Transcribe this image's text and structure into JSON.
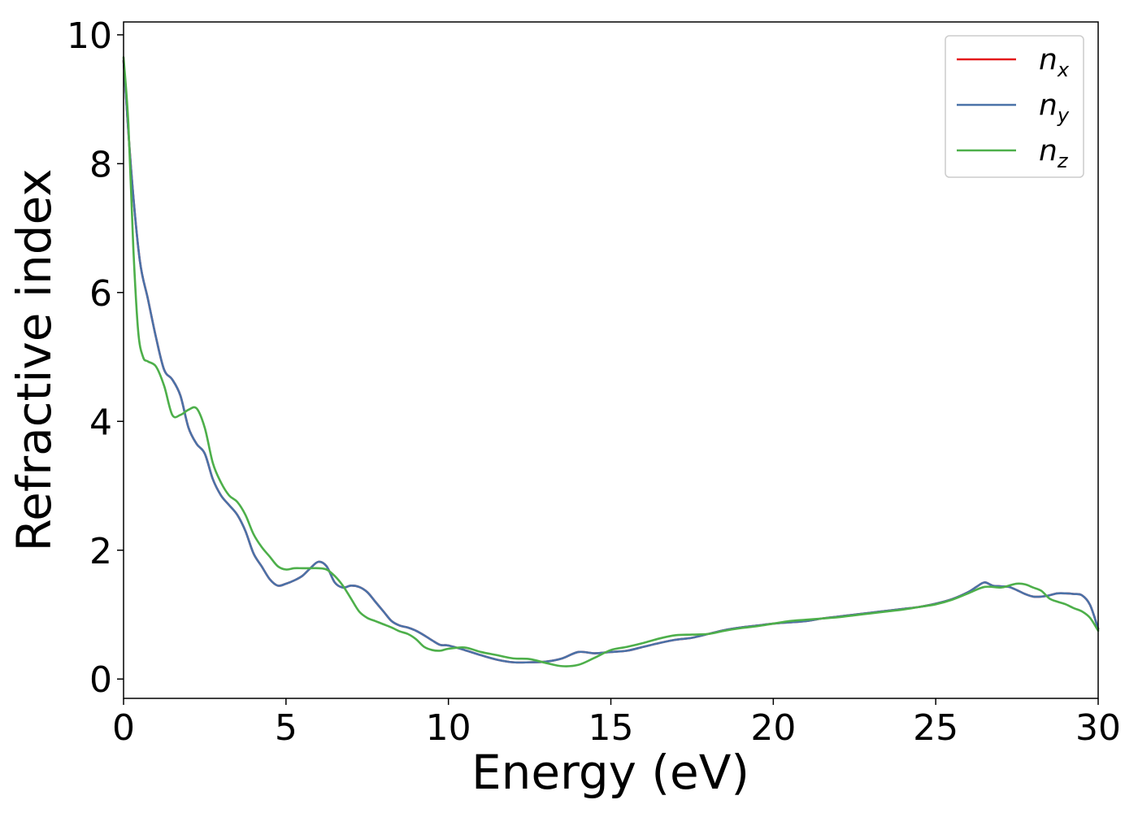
{
  "chart_data": {
    "type": "line",
    "title": "",
    "xlabel": "Energy (eV)",
    "ylabel": "Refractive index",
    "xlim": [
      0,
      30
    ],
    "ylim": [
      -0.3,
      10.2
    ],
    "xticks": [
      0,
      5,
      10,
      15,
      20,
      25,
      30
    ],
    "yticks": [
      0,
      2,
      4,
      6,
      8,
      10
    ],
    "grid": false,
    "legend_position": "top-right",
    "series": [
      {
        "name": "n",
        "subscript": "x",
        "color": "#e41a1c",
        "x": [
          0,
          0.25,
          0.5,
          0.75,
          1,
          1.25,
          1.5,
          1.75,
          2,
          2.25,
          2.5,
          2.75,
          3,
          3.25,
          3.5,
          3.75,
          4,
          4.25,
          4.5,
          4.75,
          5,
          5.25,
          5.5,
          5.75,
          6,
          6.25,
          6.5,
          6.75,
          7,
          7.25,
          7.5,
          7.75,
          8,
          8.25,
          8.5,
          8.75,
          9,
          9.25,
          9.5,
          9.75,
          10,
          10.5,
          11,
          11.5,
          12,
          12.5,
          13,
          13.5,
          14,
          14.5,
          15,
          15.5,
          16,
          16.5,
          17,
          17.5,
          18,
          18.5,
          19,
          19.5,
          20,
          20.5,
          21,
          21.5,
          22,
          22.5,
          23,
          23.5,
          24,
          24.5,
          25,
          25.5,
          26,
          26.25,
          26.5,
          26.75,
          27,
          27.25,
          27.5,
          27.75,
          28,
          28.25,
          28.5,
          28.75,
          29,
          29.25,
          29.5,
          29.75,
          30
        ],
        "values": [
          9.6,
          7.8,
          6.5,
          5.9,
          5.3,
          4.8,
          4.65,
          4.4,
          3.9,
          3.65,
          3.5,
          3.1,
          2.85,
          2.7,
          2.55,
          2.3,
          1.95,
          1.75,
          1.55,
          1.45,
          1.48,
          1.53,
          1.6,
          1.72,
          1.82,
          1.75,
          1.5,
          1.42,
          1.45,
          1.43,
          1.35,
          1.2,
          1.05,
          0.9,
          0.83,
          0.8,
          0.75,
          0.68,
          0.6,
          0.53,
          0.52,
          0.45,
          0.37,
          0.3,
          0.26,
          0.26,
          0.27,
          0.32,
          0.42,
          0.4,
          0.42,
          0.44,
          0.5,
          0.56,
          0.61,
          0.64,
          0.7,
          0.76,
          0.8,
          0.83,
          0.86,
          0.88,
          0.9,
          0.94,
          0.97,
          1.0,
          1.03,
          1.06,
          1.09,
          1.12,
          1.17,
          1.24,
          1.35,
          1.43,
          1.5,
          1.45,
          1.44,
          1.43,
          1.38,
          1.32,
          1.28,
          1.28,
          1.3,
          1.33,
          1.33,
          1.32,
          1.3,
          1.15,
          0.78
        ]
      },
      {
        "name": "n",
        "subscript": "y",
        "color": "#4a72a8",
        "x": [
          0,
          0.25,
          0.5,
          0.75,
          1,
          1.25,
          1.5,
          1.75,
          2,
          2.25,
          2.5,
          2.75,
          3,
          3.25,
          3.5,
          3.75,
          4,
          4.25,
          4.5,
          4.75,
          5,
          5.25,
          5.5,
          5.75,
          6,
          6.25,
          6.5,
          6.75,
          7,
          7.25,
          7.5,
          7.75,
          8,
          8.25,
          8.5,
          8.75,
          9,
          9.25,
          9.5,
          9.75,
          10,
          10.5,
          11,
          11.5,
          12,
          12.5,
          13,
          13.5,
          14,
          14.5,
          15,
          15.5,
          16,
          16.5,
          17,
          17.5,
          18,
          18.5,
          19,
          19.5,
          20,
          20.5,
          21,
          21.5,
          22,
          22.5,
          23,
          23.5,
          24,
          24.5,
          25,
          25.5,
          26,
          26.25,
          26.5,
          26.75,
          27,
          27.25,
          27.5,
          27.75,
          28,
          28.25,
          28.5,
          28.75,
          29,
          29.25,
          29.5,
          29.75,
          30
        ],
        "values": [
          9.6,
          7.8,
          6.5,
          5.9,
          5.3,
          4.8,
          4.65,
          4.4,
          3.9,
          3.65,
          3.5,
          3.1,
          2.85,
          2.7,
          2.55,
          2.3,
          1.95,
          1.75,
          1.55,
          1.45,
          1.48,
          1.53,
          1.6,
          1.72,
          1.82,
          1.75,
          1.5,
          1.42,
          1.45,
          1.43,
          1.35,
          1.2,
          1.05,
          0.9,
          0.83,
          0.8,
          0.75,
          0.68,
          0.6,
          0.53,
          0.52,
          0.45,
          0.37,
          0.3,
          0.26,
          0.26,
          0.27,
          0.32,
          0.42,
          0.4,
          0.42,
          0.44,
          0.5,
          0.56,
          0.61,
          0.64,
          0.7,
          0.76,
          0.8,
          0.83,
          0.86,
          0.88,
          0.9,
          0.94,
          0.97,
          1.0,
          1.03,
          1.06,
          1.09,
          1.12,
          1.17,
          1.24,
          1.35,
          1.43,
          1.5,
          1.45,
          1.44,
          1.43,
          1.38,
          1.32,
          1.28,
          1.28,
          1.3,
          1.33,
          1.33,
          1.32,
          1.3,
          1.15,
          0.78
        ]
      },
      {
        "name": "n",
        "subscript": "z",
        "color": "#4daf4a",
        "x": [
          0,
          0.15,
          0.3,
          0.45,
          0.6,
          0.75,
          1,
          1.25,
          1.5,
          1.75,
          2,
          2.25,
          2.5,
          2.75,
          3,
          3.25,
          3.5,
          3.75,
          4,
          4.25,
          4.5,
          4.75,
          5,
          5.25,
          5.5,
          5.75,
          6,
          6.25,
          6.5,
          6.75,
          7,
          7.25,
          7.5,
          7.75,
          8,
          8.25,
          8.5,
          8.75,
          9,
          9.25,
          9.5,
          9.75,
          10,
          10.5,
          11,
          11.5,
          12,
          12.5,
          13,
          13.5,
          14,
          14.5,
          15,
          15.5,
          16,
          16.5,
          17,
          17.5,
          18,
          18.5,
          19,
          19.5,
          20,
          20.5,
          21,
          21.5,
          22,
          22.5,
          23,
          23.5,
          24,
          24.5,
          25,
          25.5,
          26,
          26.5,
          27,
          27.25,
          27.5,
          27.75,
          28,
          28.25,
          28.5,
          28.75,
          29,
          29.25,
          29.5,
          29.75,
          30
        ],
        "values": [
          9.65,
          8.6,
          6.7,
          5.4,
          5.0,
          4.93,
          4.85,
          4.55,
          4.1,
          4.1,
          4.18,
          4.2,
          3.9,
          3.35,
          3.05,
          2.85,
          2.75,
          2.55,
          2.25,
          2.05,
          1.9,
          1.75,
          1.7,
          1.72,
          1.72,
          1.72,
          1.72,
          1.7,
          1.6,
          1.45,
          1.25,
          1.05,
          0.95,
          0.9,
          0.85,
          0.8,
          0.74,
          0.7,
          0.62,
          0.5,
          0.45,
          0.44,
          0.47,
          0.49,
          0.42,
          0.37,
          0.32,
          0.31,
          0.25,
          0.2,
          0.22,
          0.33,
          0.45,
          0.5,
          0.56,
          0.63,
          0.68,
          0.69,
          0.7,
          0.75,
          0.79,
          0.82,
          0.86,
          0.9,
          0.92,
          0.94,
          0.96,
          0.99,
          1.02,
          1.05,
          1.08,
          1.12,
          1.16,
          1.23,
          1.33,
          1.43,
          1.42,
          1.45,
          1.48,
          1.47,
          1.42,
          1.37,
          1.25,
          1.2,
          1.16,
          1.1,
          1.05,
          0.95,
          0.75
        ]
      }
    ]
  }
}
